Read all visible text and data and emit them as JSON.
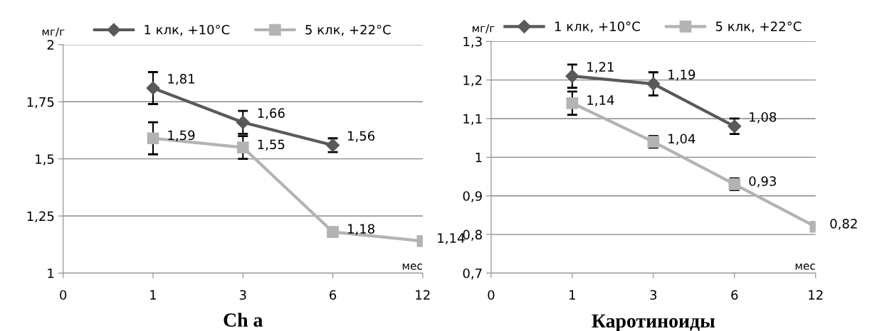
{
  "chart_data": [
    {
      "type": "line",
      "title": "Ch a",
      "xlabel": "мес",
      "ylabel": "мг/г",
      "categories": [
        "0",
        "1",
        "3",
        "6",
        "12"
      ],
      "ylim": [
        1,
        2
      ],
      "yticks": [
        {
          "value": 1,
          "label": "1"
        },
        {
          "value": 1.25,
          "label": "1,25"
        },
        {
          "value": 1.5,
          "label": "1,5"
        },
        {
          "value": 1.75,
          "label": "1,75"
        },
        {
          "value": 2,
          "label": "2"
        }
      ],
      "grid": "y",
      "legend": "top",
      "line_style": "solid",
      "series": [
        {
          "name": "1 клк, +10°C",
          "color": "#595959",
          "marker": "diamond",
          "values": [
            null,
            1.81,
            1.66,
            1.56,
            null
          ],
          "errors": [
            null,
            0.07,
            0.05,
            0.03,
            null
          ],
          "value_labels": [
            null,
            "1,81",
            "1,66",
            "1,56",
            null
          ]
        },
        {
          "name": "5 клк, +22°C",
          "color": "#b3b3b3",
          "marker": "square",
          "values": [
            null,
            1.59,
            1.55,
            1.18,
            1.14
          ],
          "errors": [
            null,
            0.07,
            0.05,
            null,
            null
          ],
          "value_labels": [
            null,
            "1,59",
            "1,55",
            "1,18",
            "1,14"
          ]
        }
      ]
    },
    {
      "type": "line",
      "title": "Каротиноиды",
      "xlabel": "мес",
      "ylabel": "мг/г",
      "categories": [
        "0",
        "1",
        "3",
        "6",
        "12"
      ],
      "ylim": [
        0.7,
        1.3
      ],
      "yticks": [
        {
          "value": 0.7,
          "label": "0,7"
        },
        {
          "value": 0.8,
          "label": "0,8"
        },
        {
          "value": 0.9,
          "label": "0,9"
        },
        {
          "value": 1,
          "label": "1"
        },
        {
          "value": 1.1,
          "label": "1,1"
        },
        {
          "value": 1.2,
          "label": "1,2"
        },
        {
          "value": 1.3,
          "label": "1,3"
        }
      ],
      "grid": "y",
      "legend": "top",
      "line_style": "solid",
      "series": [
        {
          "name": "1 клк, +10°C",
          "color": "#595959",
          "marker": "diamond",
          "values": [
            null,
            1.21,
            1.19,
            1.08,
            null
          ],
          "errors": [
            null,
            0.03,
            0.03,
            0.02,
            null
          ],
          "value_labels": [
            null,
            "1,21",
            "1,19",
            "1,08",
            null
          ]
        },
        {
          "name": "5 клк, +22°C",
          "color": "#b3b3b3",
          "marker": "square",
          "values": [
            null,
            1.14,
            1.04,
            0.93,
            0.82
          ],
          "errors": [
            null,
            0.03,
            0.015,
            0.015,
            null
          ],
          "value_labels": [
            null,
            "1,14",
            "1,04",
            "0,93",
            "0,82"
          ]
        }
      ]
    }
  ]
}
